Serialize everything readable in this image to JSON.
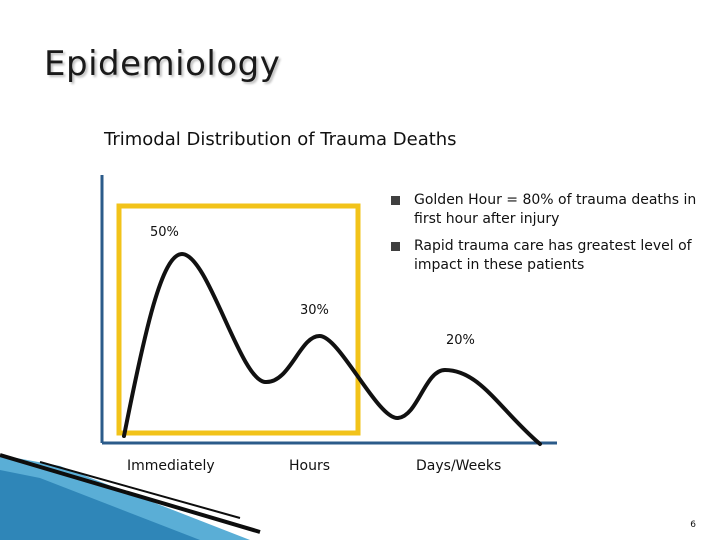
{
  "title": "Epidemiology",
  "subtitle": "Trimodal Distribution of Trauma Deaths",
  "bullets": [
    "Golden Hour = 80% of trauma deaths in first hour after injury",
    "Rapid trauma care has greatest level of impact in these patients"
  ],
  "chart_data": {
    "type": "line",
    "peaks": [
      {
        "label": "50%",
        "value": 50
      },
      {
        "label": "30%",
        "value": 30
      },
      {
        "label": "20%",
        "value": 20
      }
    ],
    "x_labels": [
      "Immediately",
      "Hours",
      "Days/Weeks"
    ]
  },
  "page_number": "6",
  "colors": {
    "highlight_box": "#f2c31a",
    "axis": "#2b5b8a",
    "curve": "#111111",
    "bullet": "#3f3f3f"
  }
}
